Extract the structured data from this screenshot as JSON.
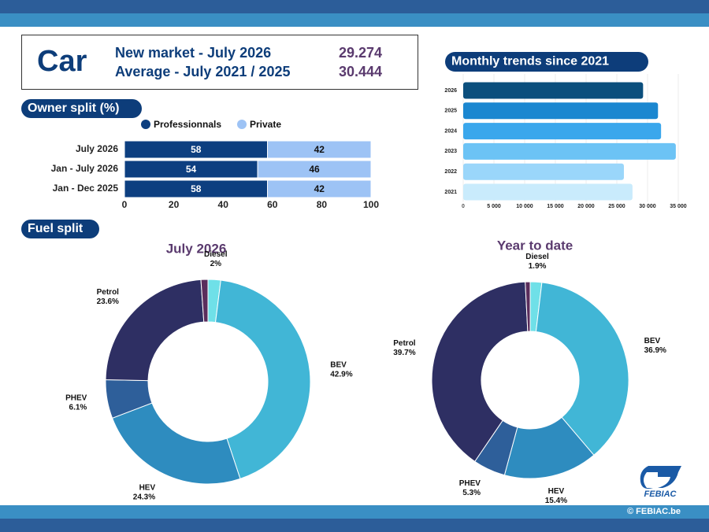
{
  "header": {
    "title": "Car",
    "rows": [
      {
        "label": "New market - July 2026",
        "value": "29.274"
      },
      {
        "label": "Average - July 2021 / 2025",
        "value": "30.444"
      }
    ]
  },
  "sections": {
    "fuel": "Fuel split"
  },
  "footer": {
    "logo": "FEBIAC",
    "copyright": "© FEBIAC.be"
  },
  "chart_data": [
    {
      "type": "hbar",
      "title": "Owner split (%)",
      "categories": [
        "July 2026",
        "Jan - July 2026",
        "Jan - Dec 2025"
      ],
      "series": [
        {
          "name": "Professionnals",
          "color": "#0d3f80",
          "values": [
            58,
            54,
            58
          ]
        },
        {
          "name": "Private",
          "color": "#9dc3f5",
          "values": [
            42,
            46,
            42
          ]
        }
      ],
      "xlim": [
        0,
        100
      ],
      "xticks": [
        0,
        20,
        40,
        60,
        80,
        100
      ],
      "stacked": true
    },
    {
      "type": "hbar",
      "title": "Monthly trends since 2021",
      "categories": [
        "2026",
        "2025",
        "2024",
        "2023",
        "2022",
        "2021"
      ],
      "values": [
        29274,
        31700,
        32200,
        34600,
        26150,
        27550
      ],
      "colors": [
        "#0b4f7d",
        "#1b87d0",
        "#3aa7ec",
        "#6cc3f5",
        "#9ad6fa",
        "#c9ebfc"
      ],
      "xlim": [
        0,
        35000
      ],
      "xticks": [
        0,
        {
          "value": 5000,
          "label": "5 000"
        },
        {
          "value": 10000,
          "label": "10 000"
        },
        {
          "value": 15000,
          "label": "15 000"
        },
        {
          "value": 20000,
          "label": "20 000"
        },
        {
          "value": 25000,
          "label": "25 000"
        },
        {
          "value": 30000,
          "label": "30 000"
        },
        {
          "value": 35000,
          "label": "35 000"
        }
      ],
      "grid": true
    },
    {
      "type": "donut",
      "title": "July 2026",
      "categories": [
        "Diesel",
        "BEV",
        "HEV",
        "PHEV",
        "Petrol",
        null
      ],
      "values": [
        2,
        42.9,
        24.3,
        6.1,
        23.6,
        1.1
      ],
      "value_labels": [
        "2%",
        "42.9%",
        "24.3%",
        "6.1%",
        "23.6%",
        null
      ],
      "colors": [
        "#6fe0e8",
        "#41b6d6",
        "#2e8cbf",
        "#2e5f9a",
        "#2e2f63",
        "#5a2d5c"
      ]
    },
    {
      "type": "donut",
      "title": "Year to date",
      "categories": [
        "Diesel",
        "BEV",
        "HEV",
        "PHEV",
        "Petrol",
        null
      ],
      "values": [
        1.9,
        36.9,
        15.4,
        5.3,
        39.7,
        0.8
      ],
      "value_labels": [
        "1.9%",
        "36.9%",
        "15.4%",
        "5.3%",
        "39.7%",
        null
      ],
      "colors": [
        "#6fe0e8",
        "#41b6d6",
        "#2e8cbf",
        "#2e5f9a",
        "#2e2f63",
        "#5a2d5c"
      ]
    }
  ]
}
